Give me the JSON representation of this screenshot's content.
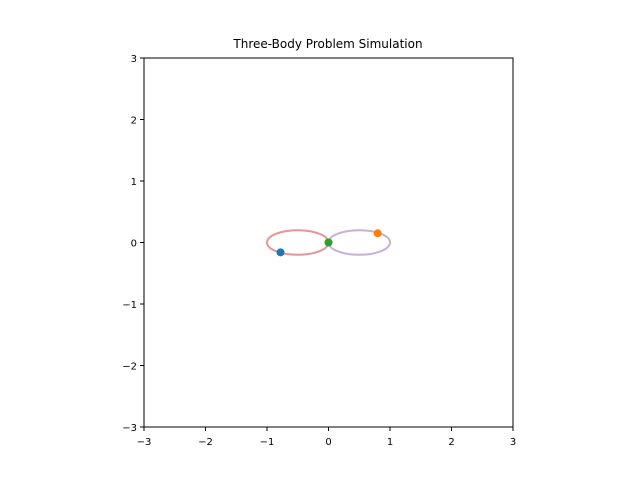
{
  "chart_data": {
    "type": "line",
    "title": "Three-Body Problem Simulation",
    "xlabel": "",
    "ylabel": "",
    "xlim": [
      -3,
      3
    ],
    "ylim": [
      -3,
      3
    ],
    "xticks": [
      -3,
      -2,
      -1,
      0,
      1,
      2,
      3
    ],
    "yticks": [
      -3,
      -2,
      -1,
      0,
      1,
      2,
      3
    ],
    "xtick_labels": [
      "−3",
      "−2",
      "−1",
      "0",
      "1",
      "2",
      "3"
    ],
    "ytick_labels": [
      "−3",
      "−2",
      "−1",
      "0",
      "1",
      "2",
      "3"
    ],
    "grid": false,
    "aspect": "equal",
    "trails": [
      {
        "color": "#e48a8a",
        "opacity": 0.9,
        "shape": "ellipse",
        "center": [
          -0.5,
          0.0
        ],
        "semi_axes": [
          0.5,
          0.2
        ]
      },
      {
        "color": "#c3a6d6",
        "opacity": 0.9,
        "shape": "ellipse",
        "center": [
          0.5,
          0.0
        ],
        "semi_axes": [
          0.5,
          0.2
        ]
      }
    ],
    "bodies": [
      {
        "x": -0.78,
        "y": -0.16,
        "color": "#1f77b4"
      },
      {
        "x": 0.8,
        "y": 0.15,
        "color": "#ff7f0e"
      },
      {
        "x": 0.0,
        "y": 0.0,
        "color": "#2ca02c"
      }
    ]
  }
}
